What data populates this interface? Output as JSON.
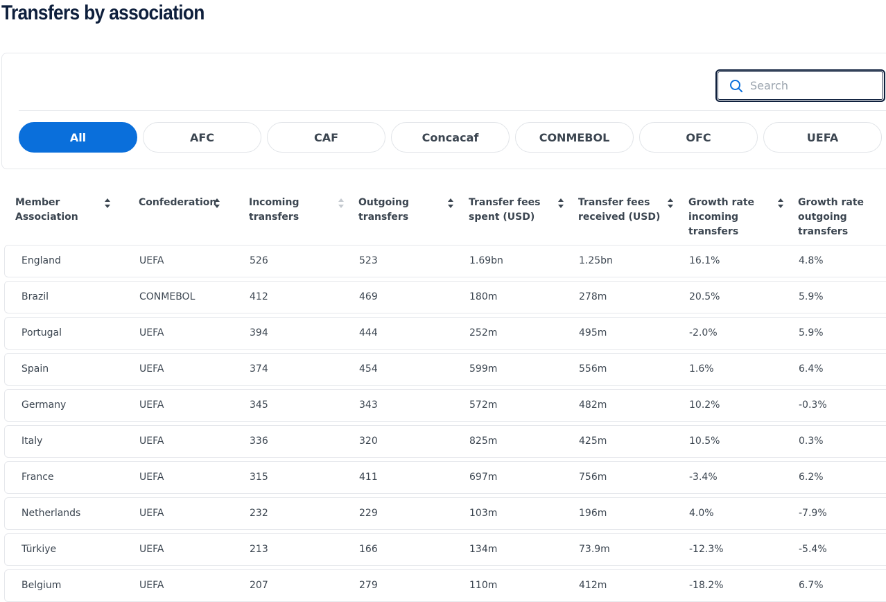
{
  "title": "Transfers by association",
  "search": {
    "placeholder": "Search"
  },
  "tabs": [
    "All",
    "AFC",
    "CAF",
    "Concacaf",
    "CONMEBOL",
    "OFC",
    "UEFA"
  ],
  "table": {
    "headers": [
      "Member Association",
      "Confederation",
      "Incoming transfers",
      "Outgoing transfers",
      "Transfer fees spent (USD)",
      "Transfer fees received (USD)",
      "Growth rate incoming transfers",
      "Growth rate outgoing transfers"
    ],
    "rows": [
      [
        "England",
        "UEFA",
        "526",
        "523",
        "1.69bn",
        "1.25bn",
        "16.1%",
        "4.8%"
      ],
      [
        "Brazil",
        "CONMEBOL",
        "412",
        "469",
        "180m",
        "278m",
        "20.5%",
        "5.9%"
      ],
      [
        "Portugal",
        "UEFA",
        "394",
        "444",
        "252m",
        "495m",
        "-2.0%",
        "5.9%"
      ],
      [
        "Spain",
        "UEFA",
        "374",
        "454",
        "599m",
        "556m",
        "1.6%",
        "6.4%"
      ],
      [
        "Germany",
        "UEFA",
        "345",
        "343",
        "572m",
        "482m",
        "10.2%",
        "-0.3%"
      ],
      [
        "Italy",
        "UEFA",
        "336",
        "320",
        "825m",
        "425m",
        "10.5%",
        "0.3%"
      ],
      [
        "France",
        "UEFA",
        "315",
        "411",
        "697m",
        "756m",
        "-3.4%",
        "6.2%"
      ],
      [
        "Netherlands",
        "UEFA",
        "232",
        "229",
        "103m",
        "196m",
        "4.0%",
        "-7.9%"
      ],
      [
        "Türkiye",
        "UEFA",
        "213",
        "166",
        "134m",
        "73.9m",
        "-12.3%",
        "-5.4%"
      ],
      [
        "Belgium",
        "UEFA",
        "207",
        "279",
        "110m",
        "412m",
        "-18.2%",
        "6.7%"
      ]
    ]
  }
}
